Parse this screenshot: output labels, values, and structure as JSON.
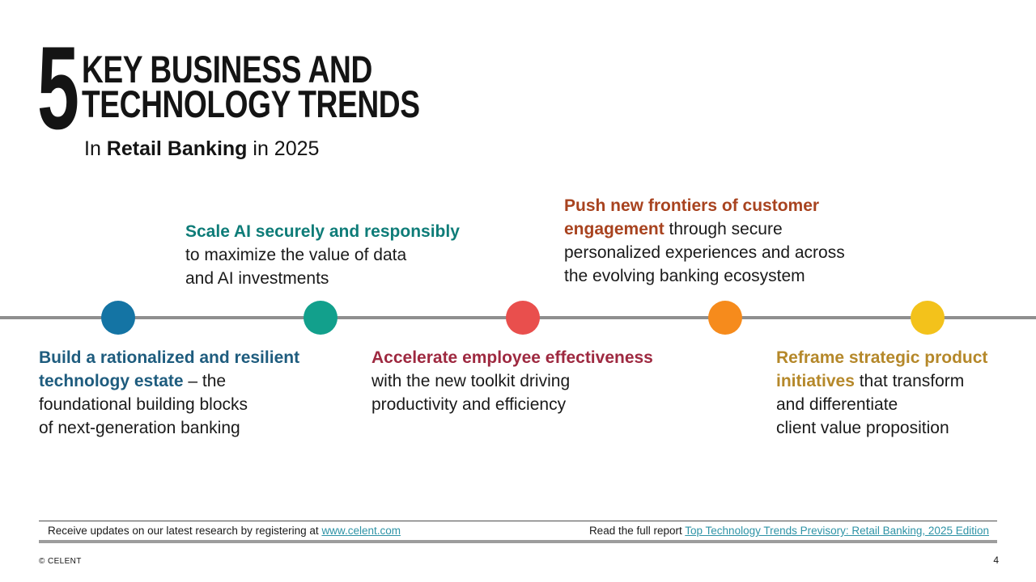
{
  "slide": {
    "title_number": "5",
    "title_line1": "KEY BUSINESS AND",
    "title_line2": "TECHNOLOGY TRENDS",
    "subtitle_prefix": "In ",
    "subtitle_emphasis": "Retail Banking",
    "subtitle_suffix": " in 2025"
  },
  "trends": [
    {
      "highlight": "Build a rationalized and resilient\ntechnology estate",
      "rest": " –  the\nfoundational building blocks\nof next-generation banking",
      "text_color": "#1e5c7e",
      "dot_color": "#1474a4",
      "placement": "below-line"
    },
    {
      "highlight": "Scale AI securely and responsibly",
      "rest": "\nto maximize the value of data\nand AI investments",
      "text_color": "#0e7c78",
      "dot_color": "#12a08c",
      "placement": "above-line"
    },
    {
      "highlight": "Accelerate employee effectiveness",
      "rest": "\nwith the new toolkit driving\nproductivity and efficiency",
      "text_color": "#9e2940",
      "dot_color": "#e94f4d",
      "placement": "below-line"
    },
    {
      "highlight": "Push new frontiers of customer\nengagement",
      "rest": " through secure\npersonalized experiences and across\nthe evolving banking ecosystem",
      "text_color": "#a8431f",
      "dot_color": "#f68b1c",
      "placement": "above-line"
    },
    {
      "highlight": "Reframe strategic product\ninitiatives",
      "rest": " that transform\nand differentiate\nclient value proposition",
      "text_color": "#b5882a",
      "dot_color": "#f3c21b",
      "placement": "below-line"
    }
  ],
  "footer": {
    "left_text": "Receive updates on our latest research by registering at ",
    "left_link": "www.celent.com",
    "right_text": "Read the full report ",
    "right_link": "Top Technology Trends Previsory: Retail Banking, 2025 Edition",
    "copyright": "© CELENT",
    "page_number": "4"
  },
  "colors": {
    "timeline_line": "#8f8f8f",
    "link": "#2e93a6",
    "title_text": "#141414",
    "body_text": "#1a1a1a"
  }
}
